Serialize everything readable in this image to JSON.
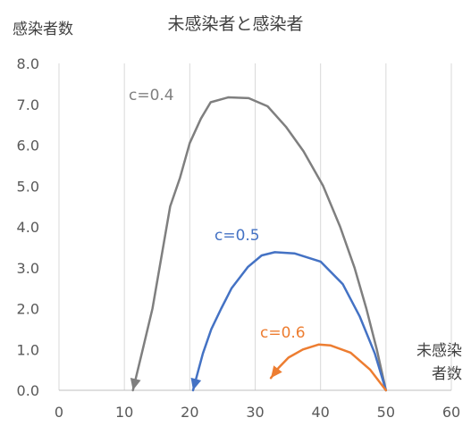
{
  "chart_data": {
    "type": "line",
    "title": "未感染者と感染者",
    "ylabel": "感染者数",
    "xlabel_line1": "未感染",
    "xlabel_line2": "者数",
    "xlim": [
      0,
      60
    ],
    "ylim": [
      0,
      8
    ],
    "x_ticks": [
      "0",
      "10",
      "20",
      "30",
      "40",
      "50",
      "60"
    ],
    "y_ticks": [
      "0.0",
      "1.0",
      "2.0",
      "3.0",
      "4.0",
      "5.0",
      "6.0",
      "7.0",
      "8.0"
    ],
    "grid": "vertical",
    "series": [
      {
        "name": "c=0.4",
        "color": "#7f7f7f",
        "points": [
          [
            50,
            0.0
          ],
          [
            48.6,
            1.0
          ],
          [
            47.0,
            2.0
          ],
          [
            45.2,
            3.0
          ],
          [
            43.0,
            4.0
          ],
          [
            40.4,
            5.0
          ],
          [
            37.4,
            5.85
          ],
          [
            34.7,
            6.45
          ],
          [
            31.9,
            6.95
          ],
          [
            29.0,
            7.15
          ],
          [
            25.9,
            7.17
          ],
          [
            23.2,
            7.05
          ],
          [
            21.7,
            6.65
          ],
          [
            20.0,
            6.05
          ],
          [
            18.5,
            5.2
          ],
          [
            17.0,
            4.5
          ],
          [
            15.7,
            3.3
          ],
          [
            14.3,
            2.0
          ],
          [
            12.8,
            1.0
          ],
          [
            11.3,
            0.0
          ]
        ]
      },
      {
        "name": "c=0.5",
        "color": "#4472c4",
        "points": [
          [
            50,
            0.0
          ],
          [
            48.3,
            0.9
          ],
          [
            46.0,
            1.8
          ],
          [
            43.4,
            2.6
          ],
          [
            40.0,
            3.15
          ],
          [
            36.0,
            3.35
          ],
          [
            33.0,
            3.38
          ],
          [
            31.0,
            3.3
          ],
          [
            28.9,
            3.02
          ],
          [
            26.4,
            2.5
          ],
          [
            24.8,
            2.0
          ],
          [
            23.3,
            1.5
          ],
          [
            22.0,
            0.9
          ],
          [
            21.0,
            0.3
          ],
          [
            20.5,
            0.0
          ]
        ]
      },
      {
        "name": "c=0.6",
        "color": "#ed7d31",
        "points": [
          [
            50,
            0.0
          ],
          [
            47.6,
            0.5
          ],
          [
            44.6,
            0.92
          ],
          [
            41.5,
            1.1
          ],
          [
            39.7,
            1.12
          ],
          [
            37.3,
            1.0
          ],
          [
            35.1,
            0.8
          ],
          [
            33.6,
            0.55
          ],
          [
            32.4,
            0.3
          ]
        ]
      }
    ]
  }
}
